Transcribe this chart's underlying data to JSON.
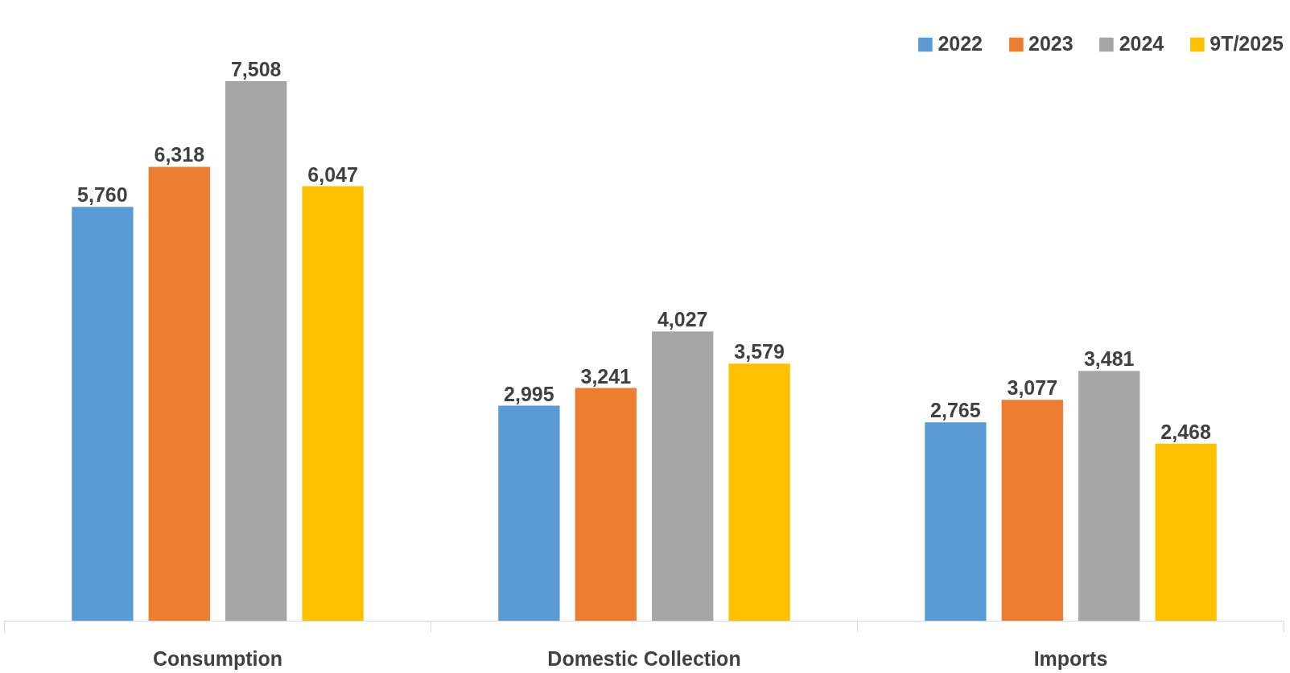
{
  "chart_data": {
    "type": "bar",
    "categories": [
      "Consumption",
      "Domestic Collection",
      "Imports"
    ],
    "series": [
      {
        "name": "2022",
        "color": "#5b9bd5",
        "values": [
          5760,
          2995,
          2765
        ],
        "value_labels": [
          "5,760",
          "2,995",
          "2,765"
        ]
      },
      {
        "name": "2023",
        "color": "#ed7d31",
        "values": [
          6318,
          3241,
          3077
        ],
        "value_labels": [
          "6,318",
          "3,241",
          "3,077"
        ]
      },
      {
        "name": "2024",
        "color": "#a5a5a5",
        "values": [
          7508,
          4027,
          3481
        ],
        "value_labels": [
          "7,508",
          "4,027",
          "3,481"
        ]
      },
      {
        "name": "9T/2025",
        "color": "#ffc000",
        "values": [
          6047,
          3579,
          2468
        ],
        "value_labels": [
          "6,047",
          "3,579",
          "2,468"
        ]
      }
    ],
    "legend": "top right",
    "grid": false,
    "tick_labels": "x"
  }
}
